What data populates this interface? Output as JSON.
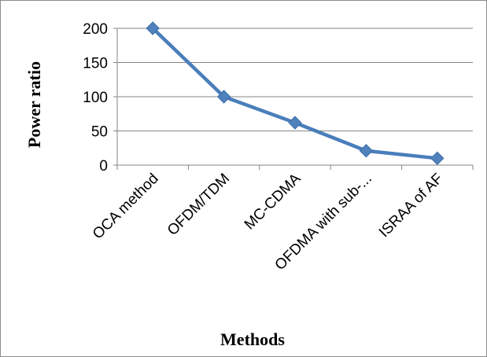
{
  "chart_data": {
    "type": "line",
    "categories": [
      "OCA method",
      "OFDM/TDM",
      "MC-CDMA",
      "OFDMA with sub-...",
      "ISRAA of AF"
    ],
    "series": [
      {
        "values": [
          200,
          100,
          62,
          21,
          10
        ]
      }
    ],
    "xlabel": "Methods",
    "ylabel": "Power ratio",
    "ylim": [
      0,
      200
    ],
    "yticks": [
      0,
      50,
      100,
      150,
      200
    ],
    "grid": "horizontal",
    "legend": "none",
    "line_color": "#4a7ebb",
    "marker_color": "#4f81bd",
    "grid_color": "#868686"
  }
}
